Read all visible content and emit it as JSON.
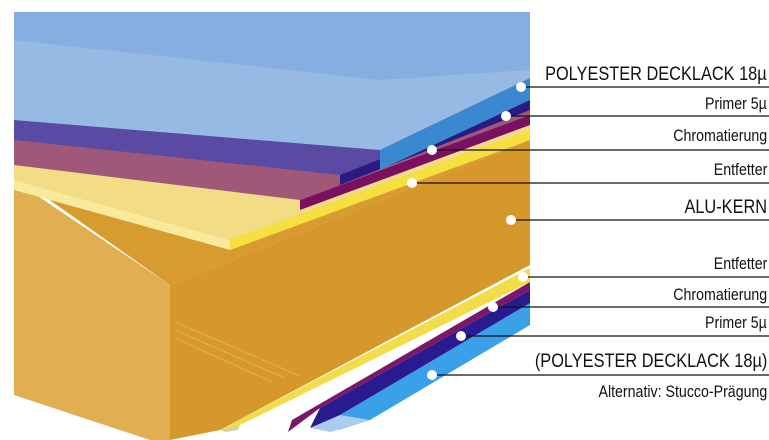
{
  "layers_top": [
    {
      "label": "POLYESTER DECKLACK 18µ"
    },
    {
      "label": "Primer 5µ"
    },
    {
      "label": "Chromatierung"
    },
    {
      "label": "Entfetter"
    }
  ],
  "core": {
    "label": "ALU-KERN"
  },
  "layers_bottom": [
    {
      "label": "Entfetter"
    },
    {
      "label": "Chromatierung"
    },
    {
      "label": "Primer 5µ"
    },
    {
      "label": "(POLYESTER DECKLACK 18µ)"
    },
    {
      "label": "Alternativ: Stucco-Prägung"
    }
  ],
  "colors": {
    "polyester": "#8ab0e0",
    "primer": "#4a3a94",
    "chromate": "#8a4a6e",
    "degreaser": "#f0dc80",
    "core": "#d89a2a"
  }
}
